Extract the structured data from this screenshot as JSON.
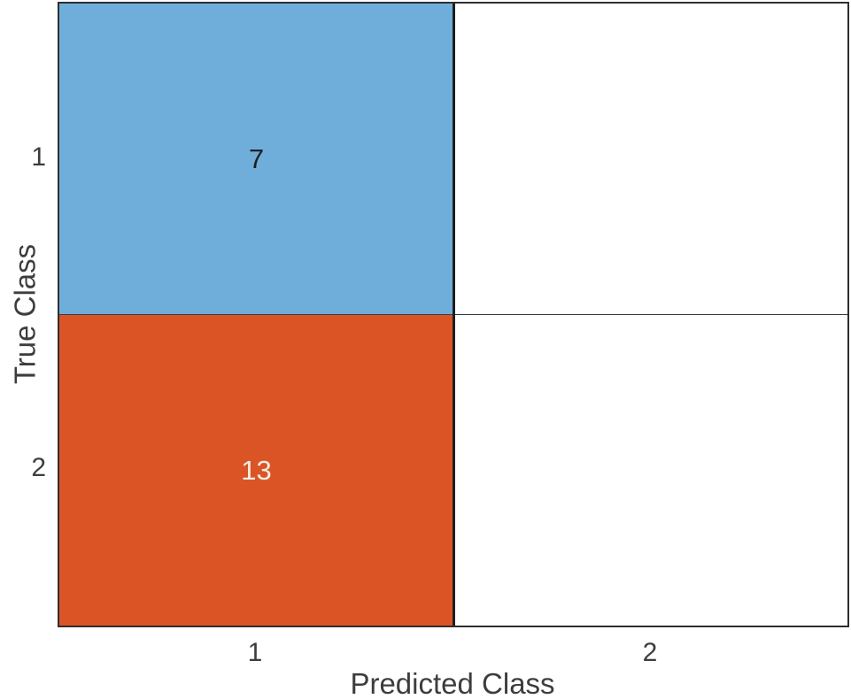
{
  "figure": {
    "background_color": "#ffffff",
    "axis_text_color": "#3d3d3d"
  },
  "chart_data": {
    "type": "heatmap",
    "subtype": "confusion_matrix",
    "title": "",
    "xlabel": "Predicted Class",
    "ylabel": "True Class",
    "x_tick_labels": [
      "1",
      "2"
    ],
    "y_tick_labels": [
      "1",
      "2"
    ],
    "true_classes": [
      "1",
      "2"
    ],
    "predicted_classes": [
      "1",
      "2"
    ],
    "matrix_rows_true_by_predicted": [
      [
        7,
        null
      ],
      [
        13,
        null
      ]
    ],
    "cells": [
      {
        "true_class": "1",
        "predicted_class": "1",
        "label": "7",
        "fill": "#6FAEDA",
        "text_color": "#1f1f1f"
      },
      {
        "true_class": "1",
        "predicted_class": "2",
        "label": "",
        "fill": "#ffffff",
        "text_color": "#1f1f1f"
      },
      {
        "true_class": "2",
        "predicted_class": "1",
        "label": "13",
        "fill": "#DA5426",
        "text_color": "#F0EDE4"
      },
      {
        "true_class": "2",
        "predicted_class": "2",
        "label": "",
        "fill": "#ffffff",
        "text_color": "#1f1f1f"
      }
    ],
    "colors": {
      "diagonal_cell": "#6FAEDA",
      "off_diagonal_cell": "#DA5426",
      "empty_cell": "#ffffff",
      "grid_line": "#3c3c3c",
      "column_divider": "#1e1e1e",
      "border": "#2e2e2e"
    },
    "layout": {
      "grid": "2x2",
      "legend": "none",
      "colorbar": "none"
    }
  }
}
